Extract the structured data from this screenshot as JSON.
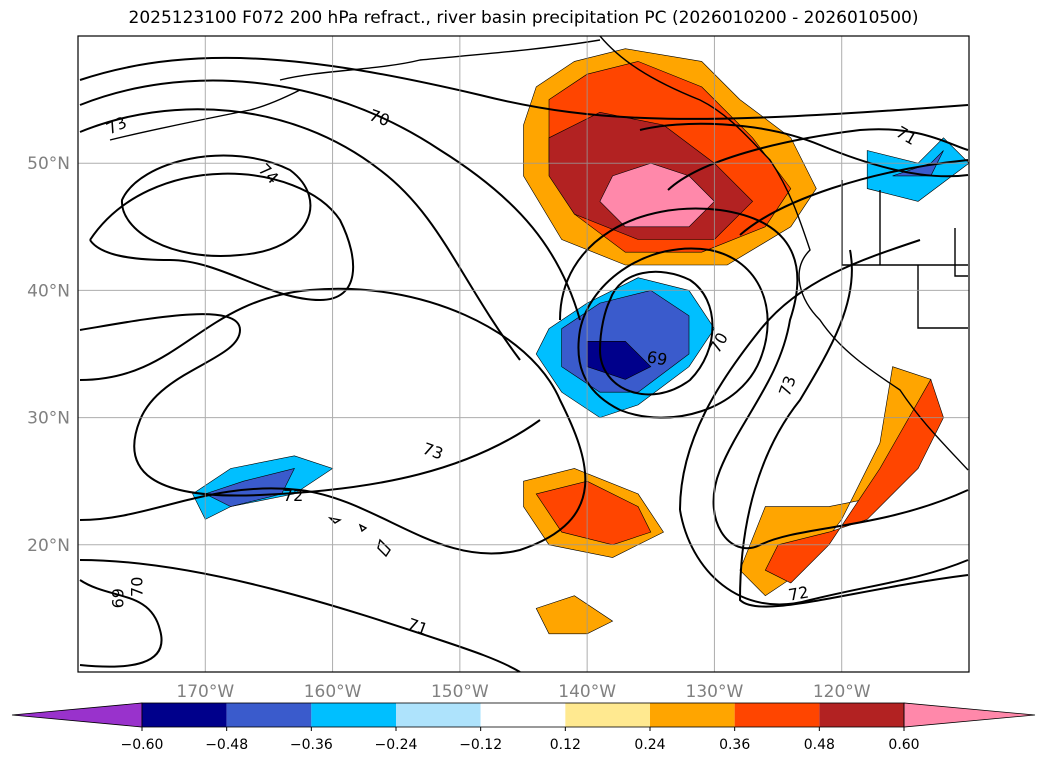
{
  "chart_data": {
    "type": "map-contour",
    "title": "2025123100 F072 200 hPa refract., river basin precipitation PC (2026010200 - 2026010500)",
    "map_extent": {
      "lon": [
        -180,
        -110
      ],
      "lat": [
        10,
        60
      ]
    },
    "grid": true,
    "lat_ticks": [
      {
        "value": 20,
        "label": "20°N"
      },
      {
        "value": 30,
        "label": "30°N"
      },
      {
        "value": 40,
        "label": "40°N"
      },
      {
        "value": 50,
        "label": "50°N"
      }
    ],
    "lon_ticks": [
      {
        "value": -170,
        "label": "170°W"
      },
      {
        "value": -160,
        "label": "160°W"
      },
      {
        "value": -150,
        "label": "150°W"
      },
      {
        "value": -140,
        "label": "140°W"
      },
      {
        "value": -130,
        "label": "130°W"
      },
      {
        "value": -120,
        "label": "120°W"
      }
    ],
    "contour_labels": [
      {
        "text": "73",
        "lon": -177.0,
        "lat": 53.0,
        "rot": -25
      },
      {
        "text": "70",
        "lon": -156.3,
        "lat": 53.6,
        "rot": 20
      },
      {
        "text": "74",
        "lon": -165.0,
        "lat": 49.2,
        "rot": 45
      },
      {
        "text": "71",
        "lon": -114.9,
        "lat": 52.2,
        "rot": 30
      },
      {
        "text": "69",
        "lon": -134.5,
        "lat": 34.7,
        "rot": 10
      },
      {
        "text": "70",
        "lon": -129.7,
        "lat": 35.9,
        "rot": -60
      },
      {
        "text": "73",
        "lon": -124.3,
        "lat": 32.5,
        "rot": -70
      },
      {
        "text": "73",
        "lon": -152.1,
        "lat": 27.4,
        "rot": 20
      },
      {
        "text": "72",
        "lon": -163.1,
        "lat": 23.9,
        "rot": 0
      },
      {
        "text": "72",
        "lon": -123.4,
        "lat": 16.2,
        "rot": -10
      },
      {
        "text": "70",
        "lon": -175.4,
        "lat": 16.7,
        "rot": -90
      },
      {
        "text": "69",
        "lon": -176.9,
        "lat": 15.8,
        "rot": -90
      },
      {
        "text": "71",
        "lon": -153.3,
        "lat": 13.6,
        "rot": 20
      }
    ],
    "contour_levels": [
      69,
      70,
      71,
      72,
      73,
      74
    ],
    "colorbar": {
      "orientation": "horizontal",
      "extend": "both",
      "ticks": [
        "−0.60",
        "−0.48",
        "−0.36",
        "−0.24",
        "−0.12",
        "0.12",
        "0.24",
        "0.36",
        "0.48",
        "0.60"
      ],
      "colors": [
        "#9932cc",
        "#00008b",
        "#3a5bcc",
        "#00bfff",
        "#aee3fc",
        "#ffffff",
        "#ffe990",
        "#ffa500",
        "#ff4500",
        "#b22222",
        "#ff88aa"
      ]
    },
    "fill_regions": [
      {
        "name": "ne-pacific-positive",
        "level": 0.24,
        "lonlat": [
          [
            -144,
            56
          ],
          [
            -141,
            58
          ],
          [
            -137,
            59
          ],
          [
            -131,
            58
          ],
          [
            -128,
            55
          ],
          [
            -124,
            52
          ],
          [
            -122,
            48
          ],
          [
            -124,
            45
          ],
          [
            -129,
            42
          ],
          [
            -137,
            42
          ],
          [
            -142,
            44
          ],
          [
            -145,
            49
          ],
          [
            -145,
            53
          ]
        ]
      },
      {
        "name": "ne-pacific-positive",
        "level": 0.36,
        "lonlat": [
          [
            -143,
            55
          ],
          [
            -140,
            57
          ],
          [
            -136,
            58
          ],
          [
            -131,
            56
          ],
          [
            -127,
            52
          ],
          [
            -124,
            48
          ],
          [
            -126,
            45
          ],
          [
            -131,
            43
          ],
          [
            -137,
            43
          ],
          [
            -141,
            46
          ],
          [
            -143,
            50
          ]
        ]
      },
      {
        "name": "ne-pacific-positive",
        "level": 0.48,
        "lonlat": [
          [
            -143,
            52
          ],
          [
            -139,
            54
          ],
          [
            -134,
            53
          ],
          [
            -130,
            50
          ],
          [
            -127,
            47
          ],
          [
            -130,
            44
          ],
          [
            -136,
            44
          ],
          [
            -141,
            46
          ],
          [
            -143,
            49
          ]
        ]
      },
      {
        "name": "ne-pacific-positive",
        "level": 0.6,
        "lonlat": [
          [
            -138,
            49
          ],
          [
            -135,
            50
          ],
          [
            -132,
            49
          ],
          [
            -130,
            47
          ],
          [
            -132,
            45
          ],
          [
            -137,
            45
          ],
          [
            -139,
            47
          ]
        ]
      },
      {
        "name": "subtropical-negative",
        "level": -0.24,
        "lonlat": [
          [
            -143,
            37
          ],
          [
            -140,
            39
          ],
          [
            -136,
            41
          ],
          [
            -132,
            40
          ],
          [
            -130,
            37
          ],
          [
            -132,
            34
          ],
          [
            -136,
            31
          ],
          [
            -139,
            30
          ],
          [
            -142,
            32
          ],
          [
            -144,
            35
          ]
        ]
      },
      {
        "name": "subtropical-negative",
        "level": -0.36,
        "lonlat": [
          [
            -142,
            37
          ],
          [
            -139,
            39
          ],
          [
            -135,
            40
          ],
          [
            -132,
            38
          ],
          [
            -132,
            35
          ],
          [
            -136,
            32
          ],
          [
            -139,
            32
          ],
          [
            -142,
            34
          ]
        ]
      },
      {
        "name": "subtropical-negative",
        "level": -0.48,
        "lonlat": [
          [
            -140,
            36
          ],
          [
            -137,
            36
          ],
          [
            -135,
            34
          ],
          [
            -137,
            33
          ],
          [
            -140,
            34
          ]
        ]
      },
      {
        "name": "hawaii-negative",
        "level": -0.24,
        "lonlat": [
          [
            -171,
            24
          ],
          [
            -168,
            26
          ],
          [
            -163,
            27
          ],
          [
            -160,
            26
          ],
          [
            -163,
            24
          ],
          [
            -168,
            23
          ],
          [
            -170,
            22
          ]
        ]
      },
      {
        "name": "hawaii-negative",
        "level": -0.36,
        "lonlat": [
          [
            -170,
            24
          ],
          [
            -167,
            25
          ],
          [
            -163,
            26
          ],
          [
            -164,
            24
          ],
          [
            -168,
            23
          ]
        ]
      },
      {
        "name": "subtropic-positive",
        "level": 0.24,
        "lonlat": [
          [
            -145,
            25
          ],
          [
            -141,
            26
          ],
          [
            -136,
            24
          ],
          [
            -134,
            21
          ],
          [
            -138,
            19
          ],
          [
            -143,
            20
          ],
          [
            -145,
            23
          ]
        ]
      },
      {
        "name": "subtropic-positive",
        "level": 0.36,
        "lonlat": [
          [
            -144,
            24
          ],
          [
            -140,
            25
          ],
          [
            -136,
            23
          ],
          [
            -135,
            21
          ],
          [
            -138,
            20
          ],
          [
            -142,
            21
          ]
        ]
      },
      {
        "name": "mexico-positive",
        "level": 0.24,
        "lonlat": [
          [
            -126,
            23
          ],
          [
            -121,
            23
          ],
          [
            -116,
            24
          ],
          [
            -113,
            28
          ],
          [
            -113,
            33
          ],
          [
            -116,
            34
          ],
          [
            -117,
            28
          ],
          [
            -120,
            22
          ],
          [
            -123,
            18
          ],
          [
            -126,
            16
          ],
          [
            -128,
            18
          ]
        ]
      },
      {
        "name": "mexico-positive",
        "level": 0.36,
        "lonlat": [
          [
            -125,
            20
          ],
          [
            -121,
            21
          ],
          [
            -118,
            22
          ],
          [
            -114,
            26
          ],
          [
            -112,
            30
          ],
          [
            -113,
            33
          ],
          [
            -117,
            26
          ],
          [
            -121,
            20
          ],
          [
            -124,
            17
          ],
          [
            -126,
            18
          ]
        ]
      },
      {
        "name": "south-blob",
        "level": 0.24,
        "lonlat": [
          [
            -144,
            15
          ],
          [
            -141,
            16
          ],
          [
            -138,
            14
          ],
          [
            -140,
            13
          ],
          [
            -143,
            13
          ]
        ]
      },
      {
        "name": "northwest-blob",
        "level": -0.24,
        "lonlat": [
          [
            -114,
            50
          ],
          [
            -112,
            52
          ],
          [
            -110,
            50
          ],
          [
            -114,
            47
          ],
          [
            -118,
            48
          ],
          [
            -118,
            51
          ]
        ]
      },
      {
        "name": "northwest-blob",
        "level": -0.36,
        "lonlat": [
          [
            -113,
            50
          ],
          [
            -112,
            51
          ],
          [
            -113,
            49
          ],
          [
            -116,
            49
          ]
        ]
      }
    ]
  }
}
